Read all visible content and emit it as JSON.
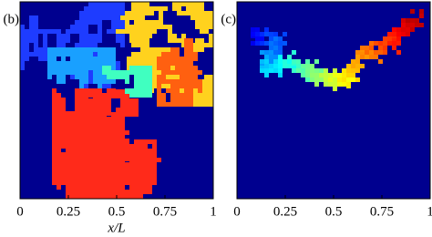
{
  "chart_data": [
    {
      "type": "image",
      "panel_label": "(b)",
      "xlabel": "x/L",
      "xlim": [
        0,
        1
      ],
      "xticks": [
        0,
        0.25,
        0.5,
        0.75,
        1
      ]
    },
    {
      "type": "image",
      "panel_label": "(c)",
      "xlim": [
        0,
        1
      ],
      "xticks": [
        0,
        0.25,
        0.5,
        0.75,
        1
      ]
    }
  ]
}
